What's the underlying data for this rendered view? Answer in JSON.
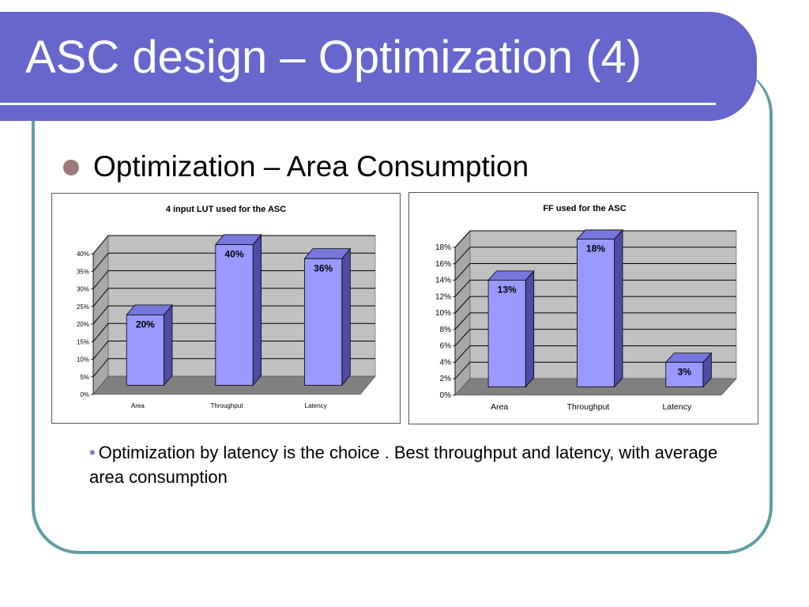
{
  "slide": {
    "title": "ASC design – Optimization (4)",
    "bullet": "Optimization – Area Consumption",
    "sub_bullet": "Optimization by latency is the choice . Best throughput and latency, with average area consumption"
  },
  "colors": {
    "title_bar": "#6666cc",
    "frame": "#5f9ea0",
    "bar_face": "#9999ff",
    "bar_side": "#4d4da6",
    "bar_top": "#7777dd",
    "plot_wall": "#c0c0c0",
    "plot_floor": "#808080"
  },
  "chart_data": [
    {
      "type": "bar",
      "title": "4 input LUT used for the ASC",
      "categories": [
        "Area",
        "Throughput",
        "Latency"
      ],
      "values": [
        20,
        40,
        36
      ],
      "data_labels": [
        "20%",
        "40%",
        "36%"
      ],
      "ylim": [
        0,
        40
      ],
      "ytick_step": 5,
      "ytick_labels": [
        "0%",
        "5%",
        "10%",
        "15%",
        "20%",
        "25%",
        "30%",
        "35%",
        "40%"
      ],
      "grid": true,
      "legend": "none"
    },
    {
      "type": "bar",
      "title": "FF used for the ASC",
      "categories": [
        "Area",
        "Throughput",
        "Latency"
      ],
      "values": [
        13,
        18,
        3
      ],
      "data_labels": [
        "13%",
        "18%",
        "3%"
      ],
      "ylim": [
        0,
        18
      ],
      "ytick_step": 2,
      "ytick_labels": [
        "0%",
        "2%",
        "4%",
        "6%",
        "8%",
        "10%",
        "12%",
        "14%",
        "16%",
        "18%"
      ],
      "grid": true,
      "legend": "none"
    }
  ]
}
